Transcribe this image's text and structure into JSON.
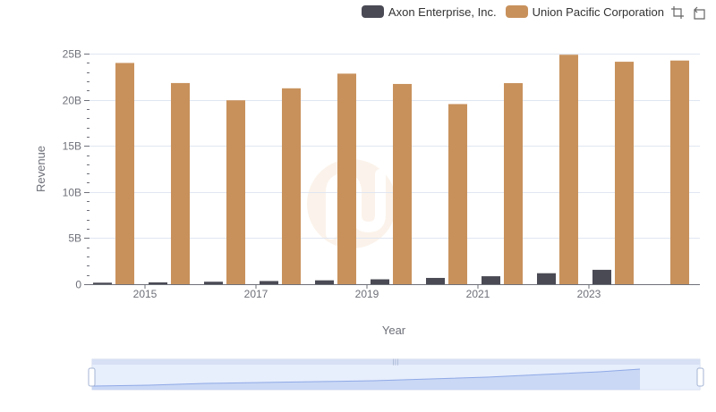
{
  "legend": {
    "items": [
      {
        "label": "Axon Enterprise, Inc.",
        "color": "#4a4a55"
      },
      {
        "label": "Union Pacific Corporation",
        "color": "#c8915c"
      }
    ]
  },
  "toolbox": {
    "icons": [
      "zoom-icon",
      "restore-icon"
    ]
  },
  "chart_data": {
    "type": "bar",
    "title": "",
    "xlabel": "Year",
    "ylabel": "Revenue",
    "ylim": [
      0,
      25000000000
    ],
    "yticks": [
      "0",
      "5B",
      "10B",
      "15B",
      "20B",
      "25B"
    ],
    "categories": [
      "2014",
      "2015",
      "2016",
      "2017",
      "2018",
      "2019",
      "2020",
      "2021",
      "2022",
      "2023",
      "2024"
    ],
    "x_tick_labels": [
      "2015",
      "2017",
      "2019",
      "2021",
      "2023"
    ],
    "series": [
      {
        "name": "Axon Enterprise, Inc.",
        "color": "#4a4a55",
        "values": [
          165000000,
          198000000,
          268000000,
          344000000,
          420000000,
          531000000,
          681000000,
          863000000,
          1190000000,
          1560000000,
          null
        ]
      },
      {
        "name": "Union Pacific Corporation",
        "color": "#c8915c",
        "values": [
          23990000000,
          21810000000,
          19940000000,
          21240000000,
          22830000000,
          21710000000,
          19530000000,
          21800000000,
          24880000000,
          24120000000,
          24250000000
        ]
      }
    ],
    "dataZoom": {
      "start": 0,
      "end": 100
    }
  }
}
